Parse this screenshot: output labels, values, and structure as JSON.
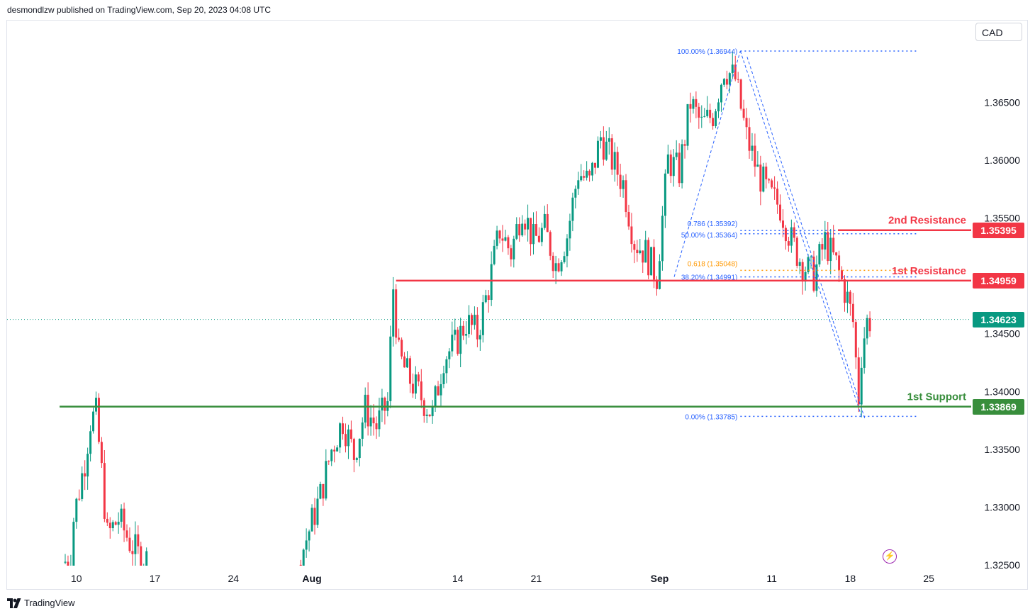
{
  "header": {
    "published_text": "desmondlzw published on TradingView.com, Sep 20, 2023 04:08 UTC"
  },
  "currency_selector": {
    "label": "CAD"
  },
  "footer": {
    "brand": "TradingView"
  },
  "colors": {
    "up": "#089981",
    "down": "#f23645",
    "support": "#388e3c",
    "resistance": "#f23645",
    "fib": "#2962ff",
    "fib_golden": "#ff9800",
    "current": "#089981"
  },
  "chart_data": {
    "type": "candlestick",
    "symbol_currency": "CAD",
    "ylim": [
      1.325,
      1.3703
    ],
    "y_ticks": [
      {
        "value": 1.365,
        "label": "1.36500"
      },
      {
        "value": 1.36,
        "label": "1.36000"
      },
      {
        "value": 1.355,
        "label": "1.35500"
      },
      {
        "value": 1.345,
        "label": "1.34500"
      },
      {
        "value": 1.34,
        "label": "1.34000"
      },
      {
        "value": 1.335,
        "label": "1.33500"
      },
      {
        "value": 1.33,
        "label": "1.33000"
      },
      {
        "value": 1.325,
        "label": "1.32500"
      }
    ],
    "x_ticks": [
      {
        "day": 1,
        "label": "10",
        "bold": false
      },
      {
        "day": 8,
        "label": "17",
        "bold": false
      },
      {
        "day": 15,
        "label": "24",
        "bold": false
      },
      {
        "day": 22,
        "label": "Aug",
        "bold": true
      },
      {
        "day": 35,
        "label": "14",
        "bold": false
      },
      {
        "day": 42,
        "label": "21",
        "bold": false
      },
      {
        "day": 53,
        "label": "Sep",
        "bold": true
      },
      {
        "day": 63,
        "label": "11",
        "bold": false
      },
      {
        "day": 70,
        "label": "18",
        "bold": false
      },
      {
        "day": 77,
        "label": "25",
        "bold": false
      }
    ],
    "x_axis_note": "day 0 = Jul 9 2023",
    "daily_path": [
      {
        "day": 0,
        "price": 1.3252
      },
      {
        "day": 0.7,
        "price": 1.3255
      },
      {
        "day": 1,
        "price": 1.329
      },
      {
        "day": 2,
        "price": 1.334
      },
      {
        "day": 2.5,
        "price": 1.3375
      },
      {
        "day": 3,
        "price": 1.338
      },
      {
        "day": 3.5,
        "price": 1.333
      },
      {
        "day": 4,
        "price": 1.3275
      },
      {
        "day": 5,
        "price": 1.329
      },
      {
        "day": 6,
        "price": 1.327
      },
      {
        "day": 7,
        "price": 1.3255
      },
      {
        "day": 21,
        "price": 1.325
      },
      {
        "day": 22,
        "price": 1.328
      },
      {
        "day": 23,
        "price": 1.331
      },
      {
        "day": 24,
        "price": 1.335
      },
      {
        "day": 25,
        "price": 1.3375
      },
      {
        "day": 26,
        "price": 1.3345
      },
      {
        "day": 27,
        "price": 1.3385
      },
      {
        "day": 28,
        "price": 1.337
      },
      {
        "day": 29,
        "price": 1.339
      },
      {
        "day": 29.5,
        "price": 1.349
      },
      {
        "day": 30,
        "price": 1.343
      },
      {
        "day": 31,
        "price": 1.341
      },
      {
        "day": 32,
        "price": 1.3395
      },
      {
        "day": 33,
        "price": 1.338
      },
      {
        "day": 34,
        "price": 1.343
      },
      {
        "day": 35,
        "price": 1.344
      },
      {
        "day": 36,
        "price": 1.346
      },
      {
        "day": 37,
        "price": 1.345
      },
      {
        "day": 38,
        "price": 1.349
      },
      {
        "day": 39,
        "price": 1.354
      },
      {
        "day": 40,
        "price": 1.352
      },
      {
        "day": 41,
        "price": 1.356
      },
      {
        "day": 42,
        "price": 1.353
      },
      {
        "day": 43,
        "price": 1.354
      },
      {
        "day": 44,
        "price": 1.351
      },
      {
        "day": 45,
        "price": 1.3535
      },
      {
        "day": 46,
        "price": 1.359
      },
      {
        "day": 47,
        "price": 1.358
      },
      {
        "day": 48,
        "price": 1.362
      },
      {
        "day": 49,
        "price": 1.36
      },
      {
        "day": 50,
        "price": 1.358
      },
      {
        "day": 51,
        "price": 1.353
      },
      {
        "day": 52,
        "price": 1.352
      },
      {
        "day": 53,
        "price": 1.35
      },
      {
        "day": 54,
        "price": 1.36
      },
      {
        "day": 55,
        "price": 1.359
      },
      {
        "day": 56,
        "price": 1.365
      },
      {
        "day": 57,
        "price": 1.363
      },
      {
        "day": 58,
        "price": 1.364
      },
      {
        "day": 59,
        "price": 1.368
      },
      {
        "day": 60,
        "price": 1.367
      },
      {
        "day": 61,
        "price": 1.362
      },
      {
        "day": 62,
        "price": 1.359
      },
      {
        "day": 63,
        "price": 1.357
      },
      {
        "day": 64,
        "price": 1.356
      },
      {
        "day": 65,
        "price": 1.353
      },
      {
        "day": 66,
        "price": 1.351
      },
      {
        "day": 67,
        "price": 1.35
      },
      {
        "day": 68,
        "price": 1.353
      },
      {
        "day": 69,
        "price": 1.351
      },
      {
        "day": 70,
        "price": 1.348
      },
      {
        "day": 70.5,
        "price": 1.346
      },
      {
        "day": 71,
        "price": 1.3395
      },
      {
        "day": 71.3,
        "price": 1.344
      },
      {
        "day": 71.8,
        "price": 1.3462
      }
    ],
    "current_price": {
      "value": 1.34623,
      "label": "1.34623"
    },
    "levels": [
      {
        "name": "2nd Resistance",
        "value": 1.35395,
        "label": "1.35395",
        "kind": "resistance"
      },
      {
        "name": "1st Resistance",
        "value": 1.34959,
        "label": "1.34959",
        "kind": "resistance"
      },
      {
        "name": "1st Support",
        "value": 1.33869,
        "label": "1.33869",
        "kind": "support"
      }
    ],
    "fibonacci": [
      {
        "level": "100.00%",
        "value": 1.36944,
        "text": "100.00% (1.36944)"
      },
      {
        "level": "0.786",
        "value": 1.35392,
        "text": "0.786 (1.35392)"
      },
      {
        "level": "50.00%",
        "value": 1.35364,
        "text": "50.00% (1.35364)"
      },
      {
        "level": "0.618",
        "value": 1.35048,
        "text": "0.618 (1.35048)"
      },
      {
        "level": "38.20%",
        "value": 1.34991,
        "text": "38.20% (1.34991)"
      },
      {
        "level": "0.00%",
        "value": 1.33785,
        "text": "0.00% (1.33785)"
      }
    ],
    "grid": false,
    "legend": "none"
  }
}
